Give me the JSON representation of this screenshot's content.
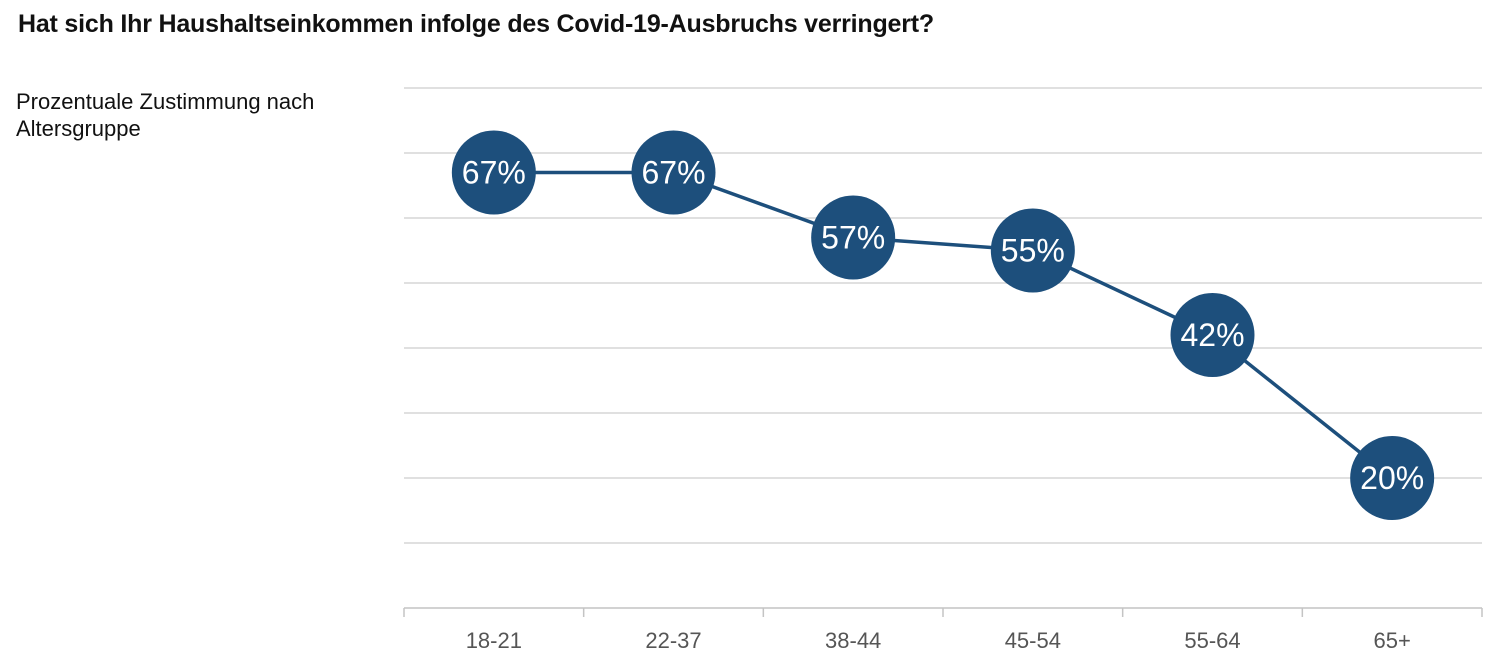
{
  "chart_data": {
    "type": "line",
    "title": "Hat sich Ihr Haushaltseinkommen infolge des Covid-19-Ausbruchs verringert?",
    "subtitle": "Prozentuale Zustimmung nach Altersgruppe",
    "categories": [
      "18-21",
      "22-37",
      "38-44",
      "45-54",
      "55-64",
      "65+"
    ],
    "values": [
      67,
      67,
      57,
      55,
      42,
      20
    ],
    "data_labels": [
      "67%",
      "67%",
      "57%",
      "55%",
      "42%",
      "20%"
    ],
    "ylim": [
      0,
      80
    ],
    "grid": true,
    "legend": "none",
    "colors": {
      "marker": "#1d4f7c",
      "line": "#1d4f7c",
      "label": "#ffffff"
    }
  }
}
